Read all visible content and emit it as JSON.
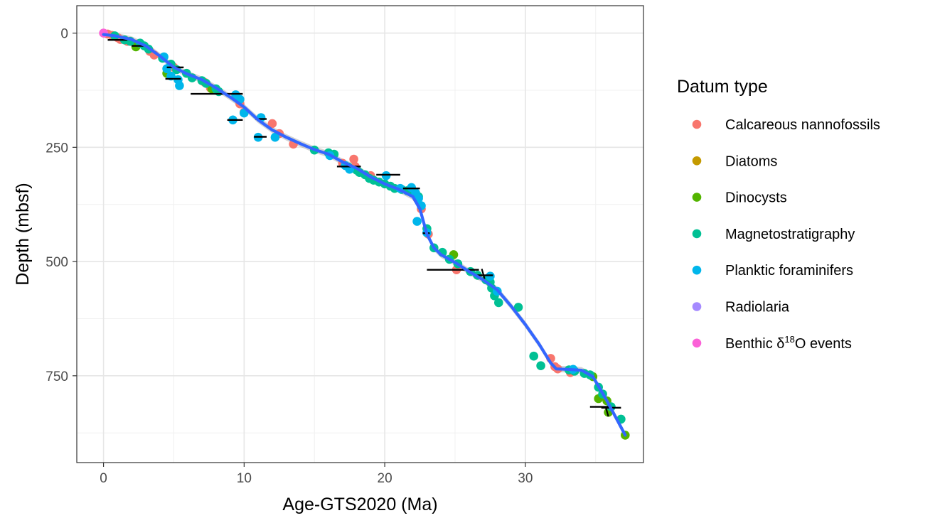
{
  "chart_data": {
    "type": "scatter",
    "xlabel": "Age-GTS2020 (Ma)",
    "ylabel": "Depth (mbsf)",
    "xlim": [
      -1.9,
      38.4
    ],
    "ylim": [
      -60,
      940
    ],
    "y_reversed": true,
    "grid": true,
    "x_ticks": [
      "0",
      "10",
      "20",
      "30"
    ],
    "x_tick_values": [
      0,
      10,
      20,
      30
    ],
    "y_ticks": [
      "0",
      "250",
      "500",
      "750"
    ],
    "y_tick_values": [
      0,
      250,
      500,
      750
    ],
    "legend": {
      "title": "Datum type",
      "position": "right",
      "entries": [
        {
          "name": "Calcareous nannofossils",
          "color": "#F8766D"
        },
        {
          "name": "Diatoms",
          "color": "#C49A00"
        },
        {
          "name": "Dinocysts",
          "color": "#53B400"
        },
        {
          "name": "Magnetostratigraphy",
          "color": "#00C094"
        },
        {
          "name": "Planktic foraminifers",
          "color": "#00B6EB"
        },
        {
          "name": "Radiolaria",
          "color": "#A58AFF"
        },
        {
          "name": "Benthic δ18O events",
          "label_base": "Benthic δ",
          "label_sup": "18",
          "label_tail": "O events",
          "color": "#FB61D7"
        }
      ]
    },
    "series": [
      {
        "name": "Calcareous nannofossils",
        "color": "#F8766D",
        "points": [
          [
            0.3,
            2
          ],
          [
            0.6,
            5
          ],
          [
            1.0,
            10
          ],
          [
            1.2,
            14
          ],
          [
            1.7,
            18
          ],
          [
            2.3,
            24
          ],
          [
            3.3,
            40
          ],
          [
            3.6,
            48
          ],
          [
            5.0,
            75
          ],
          [
            7.2,
            108
          ],
          [
            7.6,
            120
          ],
          [
            9.7,
            155
          ],
          [
            10.0,
            173
          ],
          [
            12.0,
            198
          ],
          [
            12.5,
            220
          ],
          [
            13.5,
            243
          ],
          [
            17.0,
            285
          ],
          [
            17.8,
            276
          ],
          [
            17.9,
            292
          ],
          [
            19.0,
            312
          ],
          [
            22.3,
            362
          ],
          [
            22.6,
            385
          ],
          [
            23.1,
            440
          ],
          [
            25.1,
            518
          ],
          [
            31.8,
            712
          ],
          [
            32.1,
            730
          ],
          [
            32.3,
            735
          ],
          [
            33.2,
            743
          ]
        ]
      },
      {
        "name": "Dinocysts",
        "color": "#53B400",
        "points": [
          [
            2.3,
            30
          ],
          [
            4.5,
            88
          ],
          [
            7.7,
            122
          ],
          [
            24.9,
            485
          ],
          [
            34.8,
            752
          ],
          [
            35.2,
            800
          ],
          [
            35.8,
            805
          ],
          [
            35.9,
            830
          ],
          [
            37.1,
            880
          ]
        ]
      },
      {
        "name": "Magnetostratigraphy",
        "color": "#00C094",
        "points": [
          [
            0.8,
            6
          ],
          [
            1.5,
            15
          ],
          [
            1.9,
            18
          ],
          [
            2.6,
            22
          ],
          [
            2.9,
            28
          ],
          [
            3.2,
            35
          ],
          [
            4.2,
            55
          ],
          [
            4.8,
            68
          ],
          [
            5.2,
            80
          ],
          [
            5.9,
            88
          ],
          [
            6.3,
            98
          ],
          [
            7.0,
            104
          ],
          [
            7.3,
            110
          ],
          [
            8.0,
            122
          ],
          [
            8.2,
            128
          ],
          [
            15.0,
            256
          ],
          [
            16.0,
            262
          ],
          [
            16.4,
            265
          ],
          [
            17.4,
            293
          ],
          [
            18.0,
            300
          ],
          [
            18.2,
            305
          ],
          [
            18.6,
            310
          ],
          [
            18.9,
            318
          ],
          [
            19.2,
            322
          ],
          [
            19.6,
            326
          ],
          [
            20.0,
            330
          ],
          [
            20.4,
            335
          ],
          [
            20.7,
            340
          ],
          [
            21.2,
            342
          ],
          [
            21.6,
            345
          ],
          [
            22.0,
            350
          ],
          [
            22.4,
            358
          ],
          [
            23.0,
            428
          ],
          [
            23.5,
            470
          ],
          [
            24.1,
            480
          ],
          [
            24.6,
            495
          ],
          [
            25.2,
            505
          ],
          [
            26.1,
            522
          ],
          [
            26.6,
            530
          ],
          [
            27.2,
            540
          ],
          [
            27.5,
            545
          ],
          [
            27.6,
            558
          ],
          [
            27.8,
            575
          ],
          [
            28.1,
            590
          ],
          [
            29.5,
            600
          ],
          [
            30.6,
            707
          ],
          [
            31.1,
            728
          ],
          [
            33.1,
            737
          ],
          [
            33.5,
            740
          ],
          [
            34.2,
            745
          ],
          [
            34.6,
            748
          ],
          [
            35.2,
            775
          ],
          [
            35.5,
            790
          ],
          [
            36.1,
            818
          ],
          [
            36.8,
            845
          ]
        ]
      },
      {
        "name": "Planktic foraminifers",
        "color": "#00B6EB",
        "points": [
          [
            4.3,
            52
          ],
          [
            4.5,
            78
          ],
          [
            4.8,
            94
          ],
          [
            5.3,
            102
          ],
          [
            5.4,
            115
          ],
          [
            9.2,
            190
          ],
          [
            9.4,
            135
          ],
          [
            9.7,
            145
          ],
          [
            10.0,
            175
          ],
          [
            11.0,
            228
          ],
          [
            11.2,
            185
          ],
          [
            12.2,
            228
          ],
          [
            16.1,
            268
          ],
          [
            17.2,
            290
          ],
          [
            17.5,
            298
          ],
          [
            20.1,
            312
          ],
          [
            21.1,
            340
          ],
          [
            21.9,
            338
          ],
          [
            22.2,
            350
          ],
          [
            22.4,
            362
          ],
          [
            22.6,
            378
          ],
          [
            22.3,
            412
          ],
          [
            23.0,
            437
          ],
          [
            27.5,
            532
          ],
          [
            28.0,
            565
          ],
          [
            33.4,
            736
          ]
        ]
      },
      {
        "name": "Benthic δ18O events",
        "color": "#FB61D7",
        "points": [
          [
            0.0,
            0
          ]
        ]
      }
    ],
    "range_bars": [
      [
        0.3,
        1.7,
        15
      ],
      [
        2.0,
        2.9,
        28
      ],
      [
        4.5,
        5.7,
        75
      ],
      [
        4.4,
        5.5,
        100
      ],
      [
        6.2,
        9.9,
        133
      ],
      [
        8.8,
        9.9,
        190
      ],
      [
        10.8,
        11.6,
        188
      ],
      [
        10.7,
        11.6,
        227
      ],
      [
        16.6,
        18.3,
        292
      ],
      [
        19.4,
        21.1,
        310
      ],
      [
        21.3,
        22.5,
        340
      ],
      [
        22.7,
        23.2,
        438
      ],
      [
        23.0,
        26.7,
        518
      ],
      [
        26.3,
        27.7,
        530
      ],
      [
        34.6,
        36.1,
        818
      ],
      [
        35.4,
        36.8,
        820
      ]
    ],
    "age_ranges": [
      [
        26.9,
        27.1,
        527
      ],
      [
        35.7,
        35.9,
        828
      ]
    ],
    "smooth_curve": [
      [
        0,
        3
      ],
      [
        0.8,
        6
      ],
      [
        2,
        14
      ],
      [
        3,
        28
      ],
      [
        4,
        50
      ],
      [
        5,
        75
      ],
      [
        6,
        90
      ],
      [
        7,
        102
      ],
      [
        8,
        120
      ],
      [
        9,
        140
      ],
      [
        10,
        162
      ],
      [
        11,
        190
      ],
      [
        12,
        212
      ],
      [
        13,
        228
      ],
      [
        14,
        242
      ],
      [
        15,
        255
      ],
      [
        16,
        265
      ],
      [
        17,
        282
      ],
      [
        18,
        296
      ],
      [
        19,
        315
      ],
      [
        20,
        330
      ],
      [
        21,
        342
      ],
      [
        22,
        358
      ],
      [
        22.5,
        385
      ],
      [
        23,
        440
      ],
      [
        23.5,
        470
      ],
      [
        24,
        485
      ],
      [
        25,
        502
      ],
      [
        26,
        522
      ],
      [
        27,
        540
      ],
      [
        28,
        562
      ],
      [
        29,
        598
      ],
      [
        30,
        638
      ],
      [
        31,
        682
      ],
      [
        31.8,
        722
      ],
      [
        32.2,
        735
      ],
      [
        33,
        736
      ],
      [
        34,
        738
      ],
      [
        34.8,
        752
      ],
      [
        35.3,
        778
      ],
      [
        35.8,
        805
      ],
      [
        36.5,
        845
      ],
      [
        37.1,
        880
      ]
    ]
  }
}
